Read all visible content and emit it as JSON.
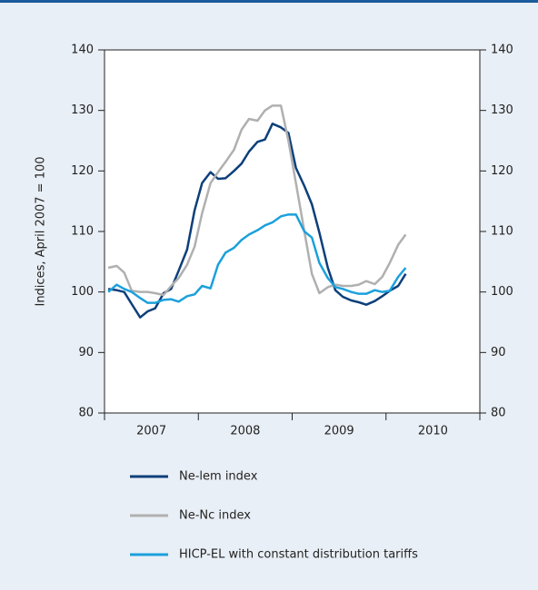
{
  "chart_data": {
    "type": "line",
    "y_label": "Indices, April 2007 = 100",
    "x": [
      2007.04,
      2007.13,
      2007.21,
      2007.29,
      2007.38,
      2007.46,
      2007.54,
      2007.63,
      2007.71,
      2007.79,
      2007.88,
      2007.96,
      2008.04,
      2008.13,
      2008.21,
      2008.29,
      2008.38,
      2008.46,
      2008.54,
      2008.63,
      2008.71,
      2008.79,
      2008.88,
      2008.96,
      2009.04,
      2009.13,
      2009.21,
      2009.29,
      2009.38,
      2009.46,
      2009.54,
      2009.63,
      2009.71,
      2009.79,
      2009.88,
      2009.96,
      2010.04,
      2010.13,
      2010.21
    ],
    "xlim": [
      2007,
      2011
    ],
    "xticks": [
      {
        "value": 2007.5,
        "label": "2007"
      },
      {
        "value": 2008.5,
        "label": "2008"
      },
      {
        "value": 2009.5,
        "label": "2009"
      },
      {
        "value": 2010.5,
        "label": "2010"
      }
    ],
    "ylim": [
      80,
      140
    ],
    "yticks": [
      80,
      90,
      100,
      110,
      120,
      130,
      140
    ],
    "y2lim": [
      80,
      140
    ],
    "y2ticks": [
      80,
      90,
      100,
      110,
      120,
      130,
      140
    ],
    "series": [
      {
        "name": "Ne-lem index",
        "color": "#0d3f7a",
        "values": [
          100.5,
          100.3,
          100,
          98,
          95.8,
          96.8,
          97.3,
          99.8,
          100.5,
          103.5,
          107,
          113.5,
          118,
          119.8,
          118.7,
          118.8,
          120,
          121.2,
          123.2,
          124.8,
          125.2,
          127.8,
          127.2,
          126.3,
          120.5,
          117.5,
          114.5,
          109.8,
          104,
          100.3,
          99.2,
          98.6,
          98.3,
          97.9,
          98.5,
          99.3,
          100.2,
          101,
          103
        ]
      },
      {
        "name": "Ne-Nc index",
        "color": "#b0b0b0",
        "values": [
          104,
          104.3,
          103.2,
          100.2,
          100,
          100,
          99.8,
          99.5,
          101,
          102.3,
          104.5,
          107.5,
          113,
          118,
          119.8,
          121.5,
          123.5,
          126.8,
          128.6,
          128.3,
          130,
          130.8,
          130.8,
          125,
          118,
          110,
          103,
          99.8,
          100.8,
          101.2,
          101,
          101,
          101.2,
          101.8,
          101.3,
          102.5,
          104.8,
          107.8,
          109.5
        ]
      },
      {
        "name": "HICP-EL with constant distribution tariffs",
        "color": "#1ba0dc",
        "values": [
          100,
          101.2,
          100.5,
          100,
          99,
          98.2,
          98.2,
          98.7,
          98.8,
          98.4,
          99.3,
          99.6,
          101,
          100.6,
          104.5,
          106.5,
          107.3,
          108.6,
          109.5,
          110.2,
          111,
          111.5,
          112.5,
          112.8,
          112.8,
          110,
          109,
          104.8,
          102.3,
          100.8,
          100.5,
          100,
          99.7,
          99.7,
          100.3,
          100,
          100.2,
          102.5,
          104
        ]
      }
    ]
  }
}
